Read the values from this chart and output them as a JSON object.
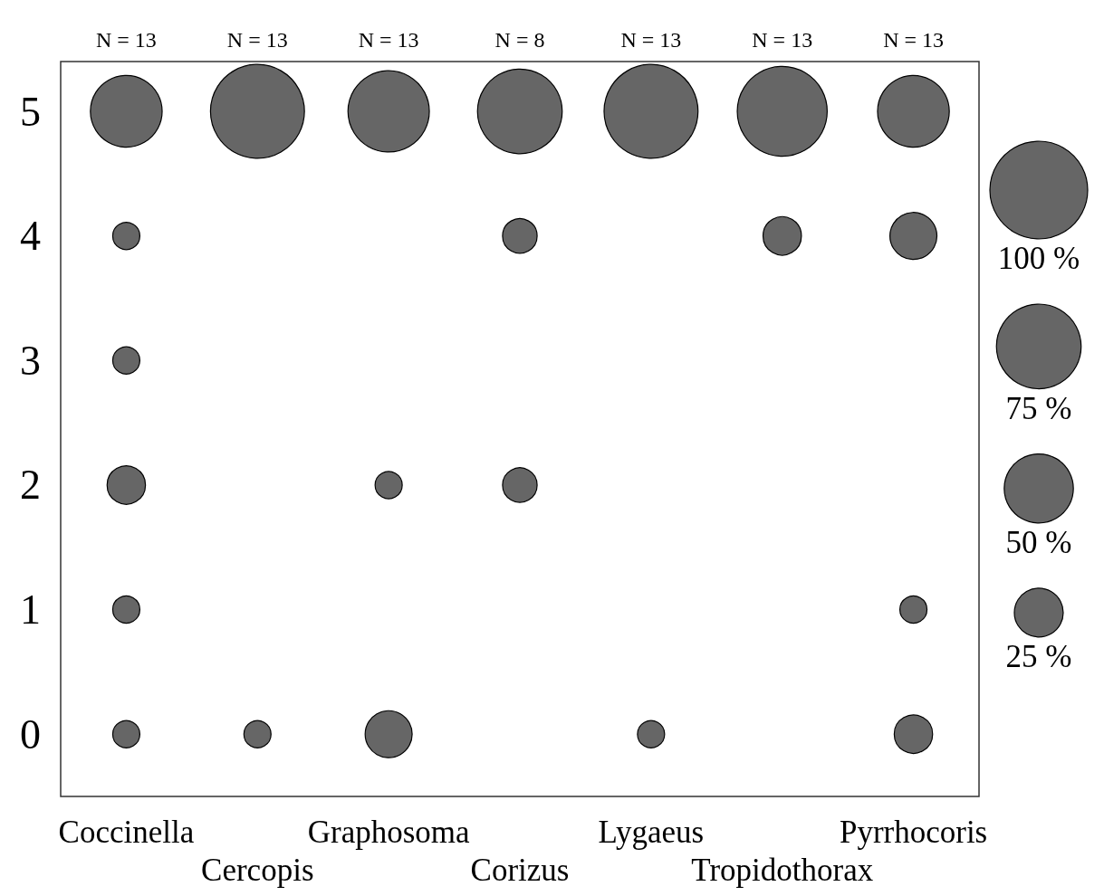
{
  "chart_data": {
    "type": "bubble",
    "categories": [
      "Coccinella",
      "Cercopis",
      "Graphosoma",
      "Corizus",
      "Lygaeus",
      "Tropidothorax",
      "Pyrrhocoris"
    ],
    "series": [
      {
        "color": "#666666",
        "x": [
          "Coccinella",
          "Coccinella",
          "Coccinella",
          "Coccinella",
          "Coccinella",
          "Coccinella",
          "Cercopis",
          "Cercopis",
          "Graphosoma",
          "Graphosoma",
          "Graphosoma",
          "Corizus",
          "Corizus",
          "Corizus",
          "Lygaeus",
          "Lygaeus",
          "Tropidothorax",
          "Tropidothorax",
          "Pyrrhocoris",
          "Pyrrhocoris",
          "Pyrrhocoris",
          "Pyrrhocoris"
        ],
        "values": [
          5,
          4,
          3,
          2,
          1,
          0,
          5,
          0,
          5,
          2,
          0,
          5,
          4,
          2,
          5,
          0,
          5,
          4,
          5,
          4,
          1,
          0
        ],
        "sizes": [
          53.8,
          7.7,
          7.7,
          15.4,
          7.7,
          7.7,
          92.3,
          7.7,
          69.2,
          7.7,
          23.1,
          75,
          12.5,
          12.5,
          92.3,
          7.7,
          84.6,
          15.4,
          53.8,
          23.1,
          7.7,
          15.4
        ]
      }
    ],
    "size_legend": [
      {
        "value": 100,
        "label": "100 %"
      },
      {
        "value": 75,
        "label": "75 %"
      },
      {
        "value": 50,
        "label": "50 %"
      },
      {
        "value": 25,
        "label": "25 %"
      }
    ],
    "ylim": [
      -0.5,
      5.4
    ],
    "yticks": [
      0,
      1,
      2,
      3,
      4,
      5
    ],
    "grid": false,
    "annotations": [
      "N = 13",
      "N = 13",
      "N = 13",
      "N = 8",
      "N = 13",
      "N = 13",
      "N = 13"
    ]
  }
}
